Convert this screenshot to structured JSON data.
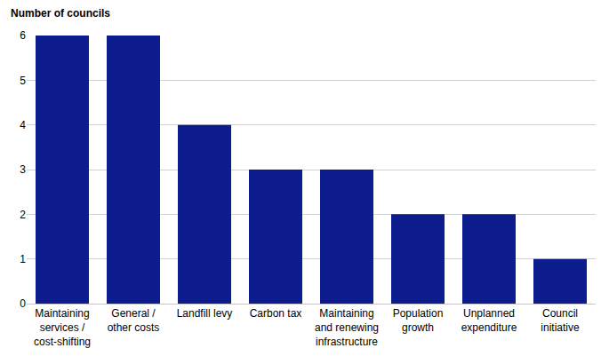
{
  "chart_data": {
    "type": "bar",
    "ylabel": "Number of councils",
    "categories": [
      "Maintaining services / cost-shifting",
      "General / other costs",
      "Landfill levy",
      "Carbon tax",
      "Maintaining and renewing infrastructure",
      "Population growth",
      "Unplanned expenditure",
      "Council initiative"
    ],
    "values": [
      6,
      6,
      4,
      3,
      3,
      2,
      2,
      1
    ],
    "color": "#0c1c8c",
    "ylim": [
      0,
      6
    ],
    "yticks": [
      0,
      1,
      2,
      3,
      4,
      5,
      6
    ],
    "grid": true
  }
}
